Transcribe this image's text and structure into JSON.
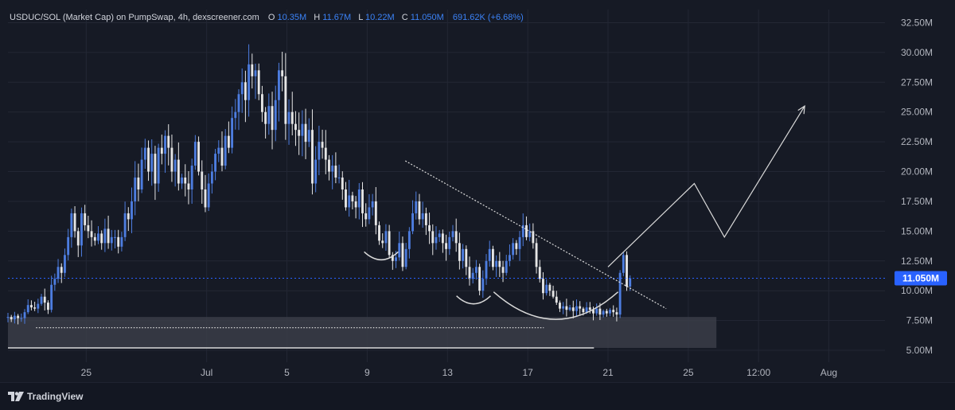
{
  "header": {
    "symbol": "USDUC/SOL (Market Cap) on PumpSwap, 4h, dexscreener.com",
    "o_label": "O",
    "o_value": "10.35M",
    "h_label": "H",
    "h_value": "11.67M",
    "l_label": "L",
    "l_value": "10.22M",
    "c_label": "C",
    "c_value": "11.050M",
    "change": "691.62K (+6.68%)"
  },
  "footer": {
    "brand": "TradingView",
    "icon": "tradingview-logo-icon"
  },
  "colors": {
    "background": "#161a25",
    "grid": "#232734",
    "up": "#4d7de0",
    "down": "#e6e6e6",
    "price_line": "#2962ff",
    "price_badge": "#2962ff",
    "annotation": "#d9d9d9",
    "zone": "#3a3d48"
  },
  "chart_data": {
    "type": "candlestick",
    "interval": "4h",
    "ylim": [
      4.0,
      33.6
    ],
    "y_unit": "M",
    "y_ticks": [
      "5.00M",
      "7.50M",
      "10.00M",
      "12.50M",
      "15.00M",
      "17.50M",
      "20.00M",
      "22.50M",
      "25.00M",
      "27.50M",
      "30.00M",
      "32.50M"
    ],
    "y_tick_values": [
      5,
      7.5,
      10,
      12.5,
      15,
      17.5,
      20,
      22.5,
      25,
      27.5,
      30,
      32.5
    ],
    "x_ticks": [
      {
        "label": "25",
        "day": 25
      },
      {
        "label": "Jul",
        "day": 31
      },
      {
        "label": "5",
        "day": 35
      },
      {
        "label": "9",
        "day": 39
      },
      {
        "label": "13",
        "day": 43
      },
      {
        "label": "17",
        "day": 47
      },
      {
        "label": "21",
        "day": 51
      },
      {
        "label": "25",
        "day": 55
      },
      {
        "label": "12:00",
        "day": 58.5
      },
      {
        "label": "Aug",
        "day": 62
      }
    ],
    "x_day_range": [
      21.1,
      64.8
    ],
    "first_candle_day": 21.1,
    "candles_per_day": 6,
    "last_price": 11.05,
    "last_price_label": "11.050M",
    "closes": [
      7.8,
      7.6,
      7.9,
      7.7,
      7.7,
      8.2,
      8.8,
      8.6,
      8.5,
      8.9,
      9.5,
      9.0,
      8.4,
      10.5,
      11.0,
      12.0,
      11.5,
      13.0,
      14.5,
      16.5,
      15.0,
      13.8,
      16.5,
      15.5,
      15.0,
      14.5,
      14.2,
      14.8,
      14.0,
      15.2,
      14.0,
      14.5,
      14.5,
      13.7,
      14.5,
      16.5,
      16.0,
      17.5,
      19.5,
      18.5,
      21.0,
      22.0,
      20.0,
      21.5,
      19.0,
      22.0,
      21.5,
      23.0,
      22.0,
      20.0,
      21.0,
      19.0,
      19.5,
      19.0,
      18.5,
      20.5,
      22.5,
      20.0,
      18.5,
      17.0,
      19.0,
      20.0,
      21.5,
      22.0,
      20.5,
      23.0,
      22.0,
      24.5,
      25.0,
      26.5,
      27.5,
      26.0,
      29.0,
      28.0,
      28.5,
      26.5,
      25.0,
      24.0,
      25.5,
      23.5,
      26.0,
      28.5,
      28.0,
      24.0,
      25.0,
      24.0,
      23.5,
      23.0,
      24.0,
      22.5,
      23.5,
      19.0,
      21.0,
      22.5,
      22.0,
      21.0,
      20.0,
      20.5,
      19.5,
      19.5,
      18.5,
      17.0,
      18.0,
      17.5,
      17.0,
      18.5,
      16.5,
      16.0,
      17.0,
      17.5,
      15.5,
      14.2,
      14.0,
      15.0,
      13.0,
      12.5,
      12.8,
      14.0,
      12.0,
      13.5,
      15.0,
      16.5,
      17.5,
      16.0,
      16.5,
      15.5,
      15.0,
      14.0,
      14.5,
      14.8,
      14.0,
      13.5,
      14.5,
      15.0,
      14.0,
      12.5,
      13.5,
      12.0,
      11.0,
      11.5,
      12.0,
      10.0,
      11.0,
      12.5,
      13.5,
      12.0,
      12.5,
      12.0,
      11.5,
      12.5,
      13.0,
      14.0,
      13.5,
      14.5,
      15.5,
      14.5,
      15.0,
      14.0,
      12.0,
      11.0,
      9.8,
      10.5,
      10.0,
      9.5,
      9.0,
      8.5,
      8.7,
      8.4,
      8.6,
      8.3,
      8.7,
      8.5,
      8.2,
      8.6,
      8.4,
      8.1,
      8.5,
      8.0,
      8.3,
      8.1,
      8.4,
      8.2,
      8.0,
      11.5,
      13.0,
      10.35,
      11.05
    ],
    "annotations": {
      "trendline": [
        {
          "day": 40.9,
          "value": 20.9
        },
        {
          "day": 53.9,
          "value": 8.5
        }
      ],
      "projection_path": [
        {
          "day": 51.0,
          "value": 12.0
        },
        {
          "day": 55.3,
          "value": 19.0
        },
        {
          "day": 56.8,
          "value": 14.5
        },
        {
          "day": 60.8,
          "value": 25.5
        }
      ],
      "support_zone": {
        "from_day": 21.1,
        "to_day": 56.4,
        "low": 5.2,
        "high": 7.8
      },
      "support_line": {
        "from_day": 21.1,
        "to_day": 50.3,
        "value": 5.2
      },
      "dotted_support": {
        "from_day": 22.5,
        "to_day": 47.8,
        "value": 6.9
      },
      "bottom_arcs": [
        {
          "center_day": 39.7,
          "width_days": 1.7,
          "low": 12.6
        },
        {
          "center_day": 44.3,
          "width_days": 1.7,
          "low": 8.9
        },
        {
          "center_day": 48.4,
          "width_days": 6.2,
          "low": 7.6
        }
      ]
    }
  }
}
